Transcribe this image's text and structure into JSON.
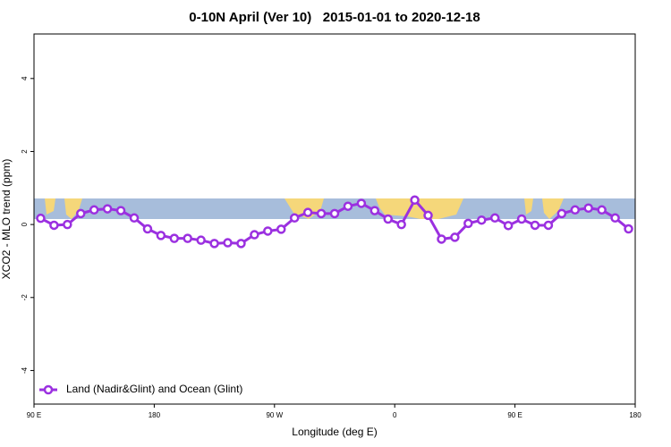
{
  "chart_data": {
    "type": "line",
    "title": "0-10N April (Ver 10)   2015-01-01 to 2020-12-18",
    "x_label": "Longitude (deg E)",
    "y_label": "XCO2 - MLO trend (ppm)",
    "xlim": [
      90,
      540
    ],
    "ylim": [
      -4.92,
      5.22
    ],
    "xticks": [
      {
        "value": 90,
        "label": "90 E"
      },
      180,
      {
        "value": 270,
        "label": "90 W"
      },
      {
        "value": 360,
        "label": "0"
      },
      {
        "value": 450,
        "label": "90 E"
      },
      {
        "value": 540,
        "label": "180"
      }
    ],
    "yticks": [
      -4,
      -2,
      0,
      2,
      4
    ],
    "legend": "bottom-left",
    "x": [
      95,
      105,
      115,
      125,
      135,
      145,
      155,
      165,
      175,
      185,
      195,
      205,
      215,
      225,
      235,
      245,
      255,
      265,
      275,
      285,
      295,
      305,
      315,
      325,
      335,
      345,
      355,
      365,
      375,
      385,
      395,
      405,
      415,
      425,
      435,
      445,
      455,
      465,
      475,
      485,
      495,
      505,
      515,
      525,
      535
    ],
    "series": [
      {
        "name": "Land (Nadir&Glint) and Ocean (Glint)",
        "color": "#9b30e0",
        "values": [
          0.17,
          -0.02,
          0.0,
          0.3,
          0.4,
          0.43,
          0.38,
          0.18,
          -0.12,
          -0.3,
          -0.38,
          -0.38,
          -0.43,
          -0.52,
          -0.5,
          -0.52,
          -0.28,
          -0.18,
          -0.13,
          0.18,
          0.33,
          0.3,
          0.3,
          0.5,
          0.58,
          0.38,
          0.15,
          0.0,
          0.67,
          0.25,
          -0.4,
          -0.35,
          0.03,
          0.12,
          0.18,
          -0.03,
          0.15,
          -0.02,
          -0.02,
          0.3,
          0.4,
          0.45,
          0.4,
          0.18,
          -0.12
        ]
      }
    ]
  }
}
